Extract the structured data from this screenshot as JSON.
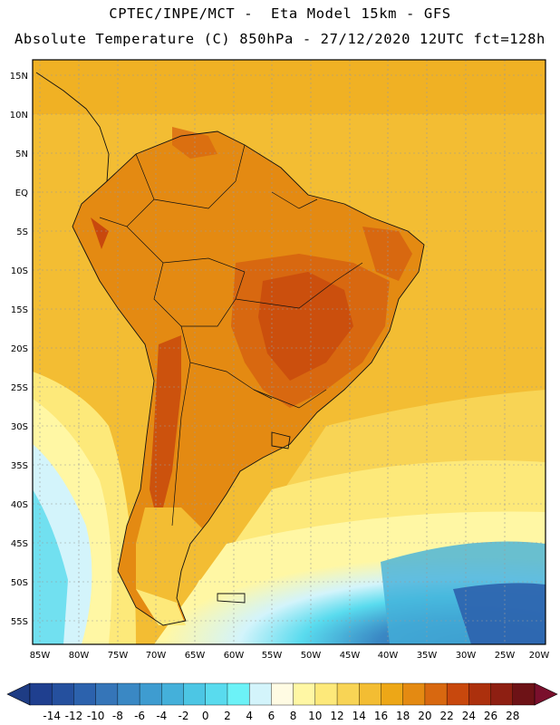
{
  "header": {
    "line1": "CPTEC/INPE/MCT -  Eta Model 15km - GFS",
    "line2": "Absolute Temperature (C) 850hPa - 27/12/2020 12UTC fct=128h"
  },
  "map": {
    "lat_labels": [
      "15N",
      "10N",
      "5N",
      "EQ",
      "5S",
      "10S",
      "15S",
      "20S",
      "25S",
      "30S",
      "35S",
      "40S",
      "45S",
      "50S",
      "55S"
    ],
    "lon_labels": [
      "85W",
      "80W",
      "75W",
      "70W",
      "65W",
      "60W",
      "55W",
      "50W",
      "45W",
      "40W",
      "35W",
      "30W",
      "25W",
      "20W"
    ]
  },
  "colorbar": {
    "ticks": [
      "-14",
      "-12",
      "-10",
      "-8",
      "-6",
      "-4",
      "-2",
      "0",
      "2",
      "4",
      "6",
      "8",
      "10",
      "12",
      "14",
      "16",
      "18",
      "20",
      "22",
      "24",
      "26",
      "28"
    ],
    "colors": [
      "#1f3f8f",
      "#25509e",
      "#2c62ad",
      "#3575b8",
      "#3a88c4",
      "#3e9cd0",
      "#44b0da",
      "#4cc6e4",
      "#59dbee",
      "#6cf2f7",
      "#d3f4fb",
      "#fffbe3",
      "#fff7a4",
      "#fde97a",
      "#f8d455",
      "#f3bd33",
      "#eda717",
      "#e48a12",
      "#d86810",
      "#c8480d",
      "#ac300d",
      "#8e1f12",
      "#6d1216"
    ],
    "low_arrow_color": "#1e3c84",
    "high_arrow_color": "#7a0f2c"
  }
}
